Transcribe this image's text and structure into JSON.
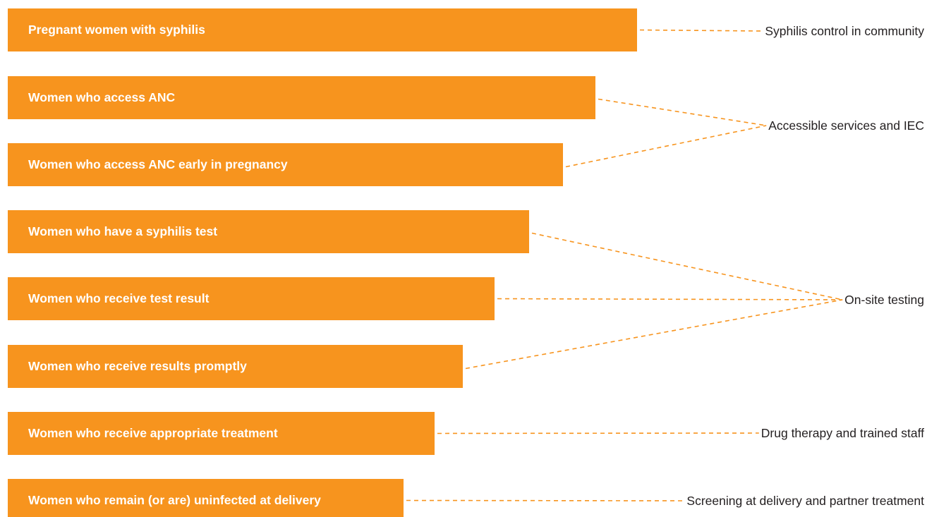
{
  "colors": {
    "bar_fill": "#F7941E",
    "bar_text": "#FFFFFF",
    "connector": "#F7941E",
    "label_text": "#231F20"
  },
  "cascade": [
    {
      "label": "Pregnant women with syphilis"
    },
    {
      "label": "Women who access ANC"
    },
    {
      "label": "Women who access ANC early in pregnancy"
    },
    {
      "label": "Women who have a syphilis test"
    },
    {
      "label": "Women who receive test result"
    },
    {
      "label": "Women who receive results promptly"
    },
    {
      "label": "Women who receive appropriate treatment"
    },
    {
      "label": "Women who remain (or are) uninfected at delivery"
    }
  ],
  "interventions": [
    {
      "label": "Syphilis control in community",
      "links": [
        0
      ]
    },
    {
      "label": "Accessible services and IEC",
      "links": [
        1,
        2
      ]
    },
    {
      "label": "On-site testing",
      "links": [
        3,
        4,
        5
      ]
    },
    {
      "label": "Drug therapy and trained staff",
      "links": [
        6
      ]
    },
    {
      "label": "Screening at delivery and partner treatment",
      "links": [
        7
      ]
    }
  ]
}
